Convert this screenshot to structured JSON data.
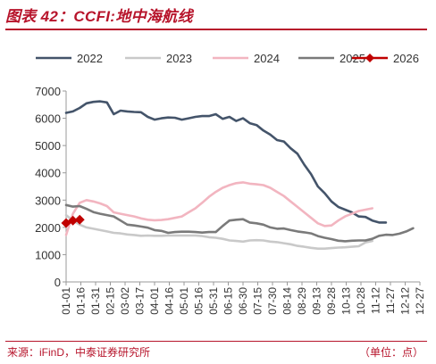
{
  "header": {
    "title": "图表 42：CCFI:地中海航线"
  },
  "footer": {
    "source": "来源：iFinD，中泰证券研究所",
    "unit": "（单位：点）"
  },
  "chart_data": {
    "type": "line",
    "title": "CCFI:地中海航线",
    "xlabel": "",
    "ylabel": "",
    "ylim": [
      0,
      7000
    ],
    "yticks": [
      0,
      1000,
      2000,
      3000,
      4000,
      5000,
      6000,
      7000
    ],
    "x": [
      "01-01",
      "01-08",
      "01-15",
      "01-22",
      "01-29",
      "02-05",
      "02-12",
      "02-19",
      "02-26",
      "03-05",
      "03-12",
      "03-19",
      "03-26",
      "04-02",
      "04-09",
      "04-16",
      "04-23",
      "04-30",
      "05-07",
      "05-14",
      "05-21",
      "05-28",
      "06-04",
      "06-11",
      "06-18",
      "06-25",
      "07-02",
      "07-09",
      "07-16",
      "07-23",
      "07-30",
      "08-06",
      "08-13",
      "08-20",
      "08-27",
      "09-03",
      "09-10",
      "09-17",
      "09-24",
      "10-01",
      "10-08",
      "10-15",
      "10-22",
      "10-29",
      "11-05",
      "11-12",
      "11-19",
      "11-26",
      "12-03",
      "12-10",
      "12-17",
      "12-24",
      "12-31"
    ],
    "xtick_labels": [
      "01-01",
      "01-16",
      "01-31",
      "02-15",
      "03-02",
      "03-17",
      "04-01",
      "04-16",
      "05-01",
      "05-16",
      "05-31",
      "06-15",
      "06-30",
      "07-15",
      "07-30",
      "08-14",
      "08-29",
      "09-13",
      "09-28",
      "10-13",
      "10-28",
      "11-12",
      "11-27",
      "12-12",
      "12-27"
    ],
    "grid": false,
    "legend": "top",
    "series": [
      {
        "name": "2022",
        "color": "#44546a",
        "marker": false,
        "values": [
          6200,
          6250,
          6380,
          6550,
          6600,
          6620,
          6580,
          6150,
          6280,
          6250,
          6230,
          6220,
          6050,
          5950,
          6000,
          6030,
          6020,
          5950,
          6000,
          6050,
          6080,
          6080,
          6150,
          5980,
          6050,
          5900,
          6000,
          5820,
          5750,
          5550,
          5400,
          5200,
          5150,
          4900,
          4700,
          4300,
          3950,
          3500,
          3250,
          2950,
          2750,
          2650,
          2550,
          2400,
          2380,
          2250,
          2180,
          2180,
          null,
          null,
          null,
          null,
          null
        ]
      },
      {
        "name": "2023",
        "color": "#c9c9c9",
        "marker": false,
        "values": [
          2450,
          2250,
          2100,
          2000,
          1950,
          1900,
          1850,
          1800,
          1780,
          1740,
          1720,
          1690,
          1700,
          1690,
          1690,
          1700,
          1700,
          1700,
          1700,
          1700,
          1680,
          1640,
          1620,
          1580,
          1520,
          1500,
          1480,
          1520,
          1530,
          1520,
          1480,
          1460,
          1420,
          1380,
          1320,
          1290,
          1250,
          1220,
          1220,
          1240,
          1260,
          1270,
          1290,
          1310,
          1450,
          1500,
          null,
          null,
          null,
          null,
          null,
          null,
          null
        ]
      },
      {
        "name": "2024",
        "color": "#f2b5c0",
        "marker": false,
        "values": [
          1720,
          2500,
          2900,
          3000,
          2950,
          2880,
          2780,
          2550,
          2500,
          2450,
          2400,
          2330,
          2280,
          2260,
          2270,
          2300,
          2350,
          2400,
          2550,
          2700,
          2900,
          3120,
          3300,
          3450,
          3550,
          3620,
          3650,
          3600,
          3580,
          3550,
          3450,
          3300,
          3150,
          2950,
          2750,
          2550,
          2350,
          2150,
          2050,
          2070,
          2250,
          2400,
          2500,
          2600,
          2650,
          2700,
          null,
          null,
          null,
          null,
          null,
          null,
          null
        ]
      },
      {
        "name": "2025",
        "color": "#7a7a7a",
        "marker": false,
        "values": [
          2820,
          2760,
          2780,
          2680,
          2560,
          2500,
          2450,
          2400,
          2250,
          2100,
          2070,
          2030,
          1990,
          1900,
          1870,
          1800,
          1830,
          1840,
          1840,
          1830,
          1810,
          1830,
          1830,
          2050,
          2250,
          2280,
          2300,
          2180,
          2150,
          2100,
          2000,
          1950,
          1960,
          1900,
          1850,
          1820,
          1780,
          1680,
          1620,
          1570,
          1510,
          1490,
          1510,
          1520,
          1520,
          1580,
          1690,
          1730,
          1720,
          1770,
          1850,
          1970,
          null
        ]
      },
      {
        "name": "2026",
        "color": "#c00000",
        "marker": true,
        "values": [
          2160,
          2250,
          2280,
          null,
          null,
          null,
          null,
          null,
          null,
          null,
          null,
          null,
          null,
          null,
          null,
          null,
          null,
          null,
          null,
          null,
          null,
          null,
          null,
          null,
          null,
          null,
          null,
          null,
          null,
          null,
          null,
          null,
          null,
          null,
          null,
          null,
          null,
          null,
          null,
          null,
          null,
          null,
          null,
          null,
          null,
          null,
          null,
          null,
          null,
          null,
          null,
          null,
          null
        ]
      }
    ]
  }
}
